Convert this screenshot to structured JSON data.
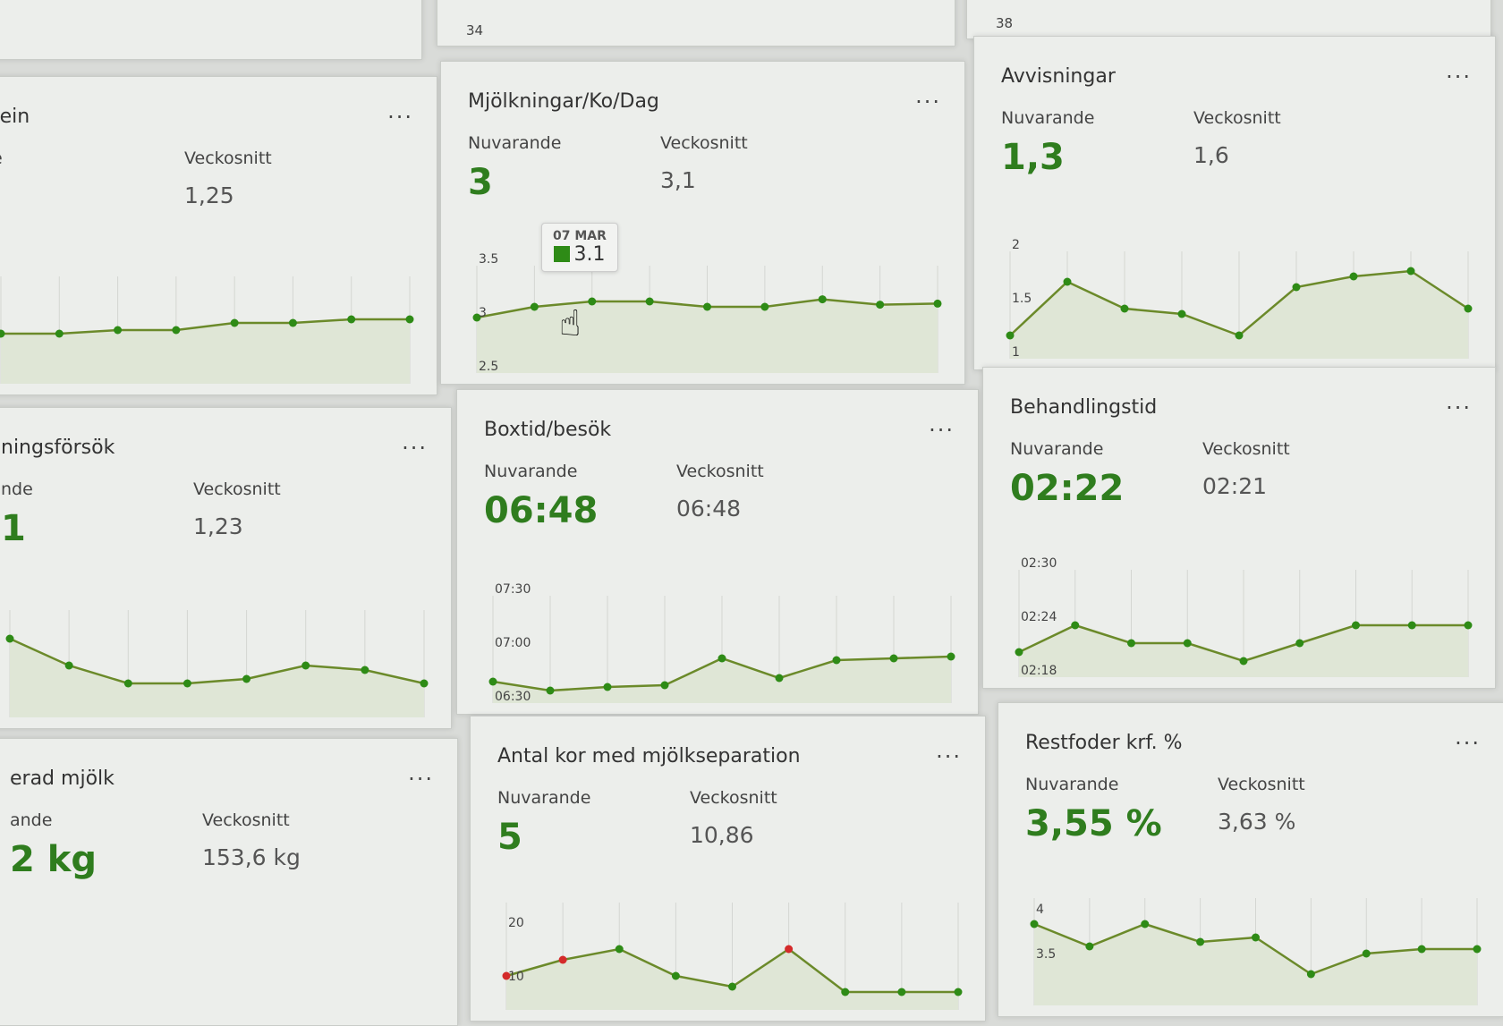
{
  "labels": {
    "current": "Nuvarande",
    "avg": "Veckosnitt",
    "more": "..."
  },
  "top": [
    {
      "tick": ""
    },
    {
      "tick": "34"
    },
    {
      "tick": "38"
    }
  ],
  "cards": [
    {
      "title": "tein",
      "current_label": "e",
      "current": "",
      "avg": "1,25",
      "ticks": [],
      "ymin": 1.1,
      "ymax": 1.4,
      "values": [
        1.22,
        1.22,
        1.23,
        1.23,
        1.25,
        1.25,
        1.26,
        1.26
      ]
    },
    {
      "title": "Mjölkningar/Ko/Dag",
      "current_label": "Nuvarande",
      "current": "3",
      "avg": "3,1",
      "ticks": [
        3.5,
        3,
        2.5
      ],
      "tick_labels": [
        "3.5",
        "3",
        "2.5"
      ],
      "ymin": 2.5,
      "ymax": 3.5,
      "values": [
        2.95,
        3.05,
        3.1,
        3.1,
        3.05,
        3.05,
        3.12,
        3.07,
        3.08
      ],
      "tooltip": {
        "date": "07 MAR",
        "value": "3.1"
      }
    },
    {
      "title": "Avvisningar",
      "current_label": "Nuvarande",
      "current": "1,3",
      "avg": "1,6",
      "ticks": [
        2,
        1.5,
        1
      ],
      "tick_labels": [
        "2",
        "1.5",
        "1"
      ],
      "ymin": 1,
      "ymax": 2,
      "values": [
        1.15,
        1.65,
        1.4,
        1.35,
        1.15,
        1.6,
        1.7,
        1.75,
        1.4
      ]
    },
    {
      "title": "ningsförsök",
      "current_label": "nde",
      "current": "1",
      "avg": "1,23",
      "ticks": [],
      "ymin": 0.8,
      "ymax": 2,
      "values": [
        1.6,
        1.3,
        1.1,
        1.1,
        1.15,
        1.3,
        1.25,
        1.1
      ]
    },
    {
      "title": "Boxtid/besök",
      "current_label": "Nuvarande",
      "current": "06:48",
      "avg": "06:48",
      "ticks": [
        450,
        420,
        390
      ],
      "tick_labels": [
        "07:30",
        "07:00",
        "06:30"
      ],
      "ymin": 390,
      "ymax": 450,
      "values": [
        398,
        393,
        395,
        396,
        411,
        400,
        410,
        411,
        412
      ]
    },
    {
      "title": "Behandlingstid",
      "current_label": "Nuvarande",
      "current": "02:22",
      "avg": "02:21",
      "ticks": [
        150,
        144,
        138
      ],
      "tick_labels": [
        "02:30",
        "02:24",
        "02:18"
      ],
      "ymin": 138,
      "ymax": 150,
      "values": [
        140,
        143,
        141,
        141,
        139,
        141,
        143,
        143,
        143
      ]
    },
    {
      "title": "erad mjölk",
      "current_label": "ande",
      "current": "2 kg",
      "avg": "153,6 kg",
      "ticks": [],
      "ymin": 0,
      "ymax": 1,
      "values": []
    },
    {
      "title": "Antal kor med mjölkseparation",
      "current_label": "Nuvarande",
      "current": "5",
      "avg": "10,86",
      "ticks": [
        20,
        10
      ],
      "tick_labels": [
        "20",
        "10"
      ],
      "ymin": 5,
      "ymax": 25,
      "values": [
        10,
        13,
        15,
        10,
        8,
        15,
        7,
        7,
        7
      ],
      "point_colors": [
        "#d42a2a",
        "#d42a2a",
        "#2e8b16",
        "#2e8b16",
        "#2e8b16",
        "#d42a2a",
        "#2e8b16",
        "#2e8b16",
        "#2e8b16"
      ]
    },
    {
      "title": "Restfoder krf. %",
      "current_label": "Nuvarande",
      "current": "3,55 %",
      "avg": "3,63 %",
      "ticks": [
        4,
        3.5
      ],
      "tick_labels": [
        "4",
        "3.5"
      ],
      "ymin": 3,
      "ymax": 4.2,
      "values": [
        3.83,
        3.58,
        3.83,
        3.63,
        3.68,
        3.27,
        3.5,
        3.55,
        3.55
      ]
    }
  ],
  "colors": {
    "line": "#6b8a2a",
    "point": "#2e8b16",
    "fill": "#dfe6d6",
    "value": "#2f7d1e"
  }
}
